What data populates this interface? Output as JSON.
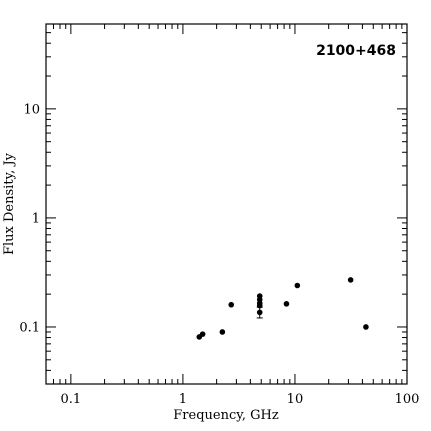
{
  "chart_data": {
    "type": "scatter",
    "title": "2100+468",
    "xlabel": "Frequency, GHz",
    "ylabel": "Flux Density, Jy",
    "x_scale": "log",
    "y_scale": "log",
    "xlim": [
      0.06,
      100
    ],
    "ylim": [
      0.03,
      60
    ],
    "grid": false,
    "x_ticks": [
      {
        "value": 0.1,
        "label": "0.1"
      },
      {
        "value": 1,
        "label": "1"
      },
      {
        "value": 10,
        "label": "10"
      },
      {
        "value": 100,
        "label": "100"
      }
    ],
    "y_ticks": [
      {
        "value": 0.1,
        "label": "0.1"
      },
      {
        "value": 1,
        "label": "1"
      },
      {
        "value": 10,
        "label": "10"
      }
    ],
    "series": [
      {
        "points": [
          {
            "x": 1.4,
            "y": 0.081
          },
          {
            "x": 1.5,
            "y": 0.086
          },
          {
            "x": 2.25,
            "y": 0.09
          },
          {
            "x": 2.7,
            "y": 0.16
          },
          {
            "x": 4.85,
            "y": 0.192
          },
          {
            "x": 4.85,
            "y": 0.178
          },
          {
            "x": 4.85,
            "y": 0.165
          },
          {
            "x": 4.85,
            "y": 0.157
          },
          {
            "x": 4.85,
            "y": 0.136,
            "yerr": [
              0.121,
              0.152
            ]
          },
          {
            "x": 8.4,
            "y": 0.163
          },
          {
            "x": 10.5,
            "y": 0.24
          },
          {
            "x": 31.4,
            "y": 0.27
          },
          {
            "x": 43,
            "y": 0.1
          }
        ]
      }
    ]
  }
}
